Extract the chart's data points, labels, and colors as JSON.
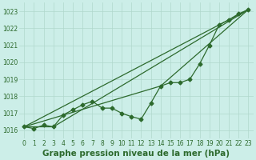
{
  "background_color": "#cceee8",
  "grid_color": "#b0d8cc",
  "line_color": "#2d6a2d",
  "title": "Graphe pression niveau de la mer (hPa)",
  "xlim": [
    -0.5,
    23.5
  ],
  "ylim": [
    1015.5,
    1023.5
  ],
  "xticks": [
    0,
    1,
    2,
    3,
    4,
    5,
    6,
    7,
    8,
    9,
    10,
    11,
    12,
    13,
    14,
    15,
    16,
    17,
    18,
    19,
    20,
    21,
    22,
    23
  ],
  "yticks": [
    1016,
    1017,
    1018,
    1019,
    1020,
    1021,
    1022,
    1023
  ],
  "main_series": {
    "x": [
      0,
      1,
      2,
      3,
      4,
      5,
      6,
      7,
      8,
      9,
      10,
      11,
      12,
      13,
      14,
      15,
      16,
      17,
      18,
      19,
      20,
      21,
      22,
      23
    ],
    "y": [
      1016.2,
      1016.1,
      1016.3,
      1016.2,
      1016.9,
      1017.2,
      1017.5,
      1017.7,
      1017.3,
      1017.3,
      1017.0,
      1016.8,
      1016.65,
      1017.6,
      1018.6,
      1018.8,
      1018.8,
      1019.0,
      1019.9,
      1021.0,
      1022.2,
      1022.5,
      1022.85,
      1023.1
    ],
    "markersize": 2.5,
    "linewidth": 0.9
  },
  "trend_lines": [
    {
      "x": [
        0,
        23
      ],
      "y": [
        1016.2,
        1023.1
      ]
    },
    {
      "x": [
        0,
        3,
        23
      ],
      "y": [
        1016.2,
        1016.2,
        1023.1
      ]
    },
    {
      "x": [
        0,
        14,
        23
      ],
      "y": [
        1016.2,
        1018.6,
        1023.1
      ]
    }
  ],
  "trend_linewidth": 0.9,
  "title_fontsize": 7.5,
  "tick_fontsize": 5.5,
  "title_color": "#2d6a2d",
  "tick_color": "#2d6a2d"
}
